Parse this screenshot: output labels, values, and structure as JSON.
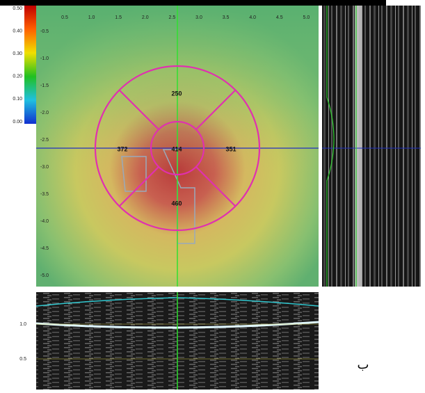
{
  "color_scale": {
    "labels": [
      "0.50",
      "0.40",
      "0.30",
      "0.20",
      "0.10",
      "0.00"
    ]
  },
  "thickness_map": {
    "x_labels": [
      "0.5",
      "1.0",
      "1.5",
      "2.0",
      "2.5",
      "3.0",
      "3.5",
      "4.0",
      "4.5",
      "5.0"
    ],
    "y_labels": [
      "-0.5",
      "-1.0",
      "-1.5",
      "-2.0",
      "-2.5",
      "-3.0",
      "-3.5",
      "-4.0",
      "-4.5",
      "-5.0"
    ],
    "sectors": {
      "superior": "250",
      "nasal": "372",
      "center": "414",
      "temporal": "351",
      "inferior": "460"
    }
  },
  "b_scan": {
    "y_labels": [
      "1.0",
      "0.5"
    ]
  },
  "side_note": "ب"
}
